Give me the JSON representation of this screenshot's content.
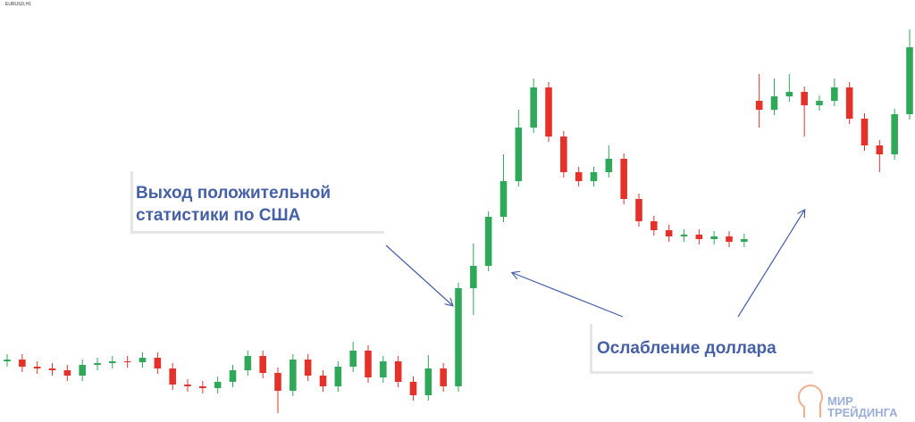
{
  "chart_data": {
    "type": "candlestick",
    "symbol": "EURUSD,H1",
    "up_color": "#2fa85a",
    "down_color": "#e4322b",
    "ylim": [
      0,
      473
    ],
    "open": [
      68,
      70,
      62,
      60,
      58,
      52,
      64,
      66,
      68,
      67,
      72,
      60,
      42,
      40,
      38,
      45,
      58,
      74,
      55,
      35,
      70,
      52,
      40,
      62,
      80,
      50,
      68,
      45,
      30,
      60,
      40,
      150,
      175,
      230,
      270,
      330,
      375,
      320,
      280,
      270,
      280,
      295,
      250,
      225,
      215,
      208,
      210,
      205,
      208,
      202,
      360,
      350,
      365,
      370,
      355,
      360,
      375,
      340,
      310,
      300,
      345
    ],
    "high": [
      76,
      76,
      68,
      66,
      64,
      70,
      72,
      74,
      74,
      78,
      78,
      66,
      48,
      46,
      51,
      64,
      80,
      80,
      61,
      76,
      76,
      58,
      68,
      90,
      86,
      74,
      74,
      51,
      75,
      66,
      156,
      200,
      236,
      300,
      350,
      385,
      381,
      326,
      286,
      286,
      310,
      301,
      256,
      231,
      221,
      216,
      216,
      214,
      214,
      211,
      390,
      385,
      390,
      376,
      366,
      385,
      381,
      346,
      316,
      351,
      440
    ],
    "low": [
      62,
      56,
      54,
      52,
      46,
      46,
      58,
      60,
      61,
      61,
      54,
      36,
      34,
      32,
      32,
      39,
      52,
      49,
      10,
      29,
      46,
      34,
      34,
      56,
      44,
      44,
      39,
      24,
      24,
      34,
      34,
      120,
      169,
      224,
      264,
      324,
      314,
      274,
      264,
      264,
      274,
      244,
      219,
      209,
      202,
      202,
      199,
      199,
      196,
      196,
      330,
      344,
      359,
      320,
      349,
      354,
      334,
      304,
      280,
      294,
      339
    ],
    "close": [
      70,
      62,
      60,
      58,
      52,
      64,
      66,
      68,
      67,
      72,
      60,
      42,
      40,
      38,
      45,
      58,
      74,
      55,
      35,
      70,
      52,
      40,
      62,
      80,
      50,
      68,
      45,
      30,
      60,
      40,
      150,
      175,
      230,
      270,
      330,
      375,
      320,
      280,
      270,
      280,
      295,
      250,
      225,
      215,
      208,
      210,
      205,
      208,
      202,
      205,
      350,
      365,
      370,
      355,
      360,
      375,
      340,
      310,
      300,
      345,
      420
    ],
    "annotations": [
      "Выход положительной",
      "статистики по США",
      "Ослабление доллара"
    ],
    "logo": [
      "МИР",
      "ТРЕЙДИНГА"
    ]
  }
}
